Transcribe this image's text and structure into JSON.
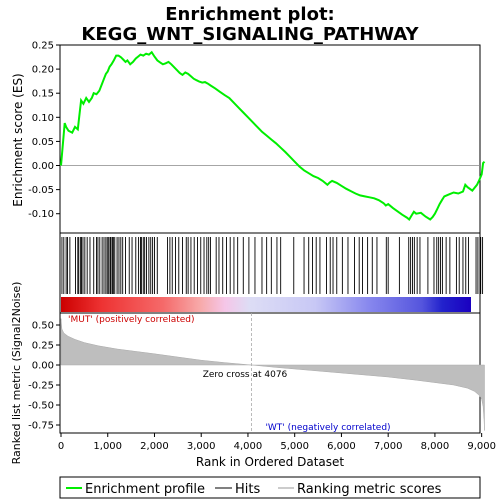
{
  "chart_data": {
    "type": "line",
    "title_line1": "Enrichment plot:",
    "title_line2": "KEGG_WNT_SIGNALING_PATHWAY",
    "panels": {
      "enrichment": {
        "ylabel": "Enrichment score (ES)",
        "ylim": [
          -0.14,
          0.25
        ],
        "yticks": [
          -0.1,
          -0.05,
          0.0,
          0.05,
          0.1,
          0.15,
          0.2,
          0.25
        ],
        "ytick_labels": [
          "-0.10",
          "-0.05",
          "0.00",
          "0.05",
          "0.10",
          "0.15",
          "0.20",
          "0.25"
        ],
        "series": [
          {
            "name": "Enrichment profile",
            "color": "#00ee00",
            "x": [
              0,
              40,
              80,
              110,
              160,
              240,
              300,
              360,
              400,
              430,
              480,
              540,
              600,
              660,
              700,
              760,
              820,
              880,
              920,
              960,
              1000,
              1040,
              1080,
              1130,
              1180,
              1230,
              1280,
              1330,
              1380,
              1420,
              1480,
              1540,
              1600,
              1650,
              1700,
              1760,
              1820,
              1880,
              1940,
              2000,
              2060,
              2120,
              2180,
              2240,
              2300,
              2360,
              2420,
              2480,
              2540,
              2600,
              2660,
              2720,
              2780,
              2840,
              2900,
              2960,
              3020,
              3080,
              3140,
              3200,
              3300,
              3400,
              3500,
              3600,
              3700,
              3800,
              3900,
              4000,
              4100,
              4200,
              4300,
              4400,
              4500,
              4600,
              4700,
              4800,
              4900,
              5000,
              5100,
              5200,
              5300,
              5400,
              5500,
              5600,
              5700,
              5750,
              5800,
              5900,
              6000,
              6100,
              6200,
              6300,
              6400,
              6500,
              6600,
              6700,
              6800,
              6900,
              6950,
              7000,
              7100,
              7200,
              7300,
              7400,
              7450,
              7500,
              7550,
              7600,
              7700,
              7800,
              7900,
              7950,
              8000,
              8050,
              8100,
              8150,
              8200,
              8300,
              8400,
              8500,
              8600,
              8650,
              8700,
              8800,
              8900,
              8950,
              9000,
              9030,
              9060
            ],
            "y": [
              0.0,
              0.045,
              0.088,
              0.08,
              0.072,
              0.068,
              0.08,
              0.075,
              0.11,
              0.135,
              0.128,
              0.14,
              0.132,
              0.14,
              0.15,
              0.148,
              0.155,
              0.17,
              0.18,
              0.19,
              0.195,
              0.205,
              0.21,
              0.218,
              0.228,
              0.228,
              0.225,
              0.22,
              0.215,
              0.218,
              0.21,
              0.215,
              0.222,
              0.226,
              0.23,
              0.228,
              0.232,
              0.23,
              0.235,
              0.226,
              0.218,
              0.214,
              0.21,
              0.212,
              0.215,
              0.21,
              0.204,
              0.198,
              0.192,
              0.188,
              0.193,
              0.19,
              0.185,
              0.18,
              0.177,
              0.174,
              0.172,
              0.173,
              0.17,
              0.166,
              0.16,
              0.153,
              0.146,
              0.14,
              0.13,
              0.12,
              0.11,
              0.1,
              0.09,
              0.08,
              0.07,
              0.062,
              0.054,
              0.046,
              0.037,
              0.028,
              0.018,
              0.008,
              -0.002,
              -0.01,
              -0.016,
              -0.022,
              -0.026,
              -0.032,
              -0.04,
              -0.035,
              -0.032,
              -0.036,
              -0.042,
              -0.048,
              -0.053,
              -0.058,
              -0.062,
              -0.064,
              -0.066,
              -0.068,
              -0.072,
              -0.078,
              -0.083,
              -0.08,
              -0.088,
              -0.095,
              -0.102,
              -0.108,
              -0.112,
              -0.104,
              -0.096,
              -0.1,
              -0.098,
              -0.106,
              -0.112,
              -0.107,
              -0.1,
              -0.09,
              -0.08,
              -0.072,
              -0.064,
              -0.06,
              -0.056,
              -0.058,
              -0.054,
              -0.04,
              -0.045,
              -0.052,
              -0.04,
              -0.03,
              -0.018,
              0.005,
              0.008
            ]
          }
        ]
      },
      "hits": {
        "label": "Hits",
        "positions": [
          20,
          60,
          110,
          140,
          190,
          310,
          360,
          380,
          420,
          440,
          470,
          510,
          560,
          620,
          700,
          760,
          790,
          830,
          880,
          920,
          960,
          990,
          1020,
          1050,
          1070,
          1100,
          1120,
          1150,
          1200,
          1240,
          1280,
          1320,
          1380,
          1460,
          1520,
          1600,
          1660,
          1700,
          1720,
          1760,
          1790,
          1830,
          1880,
          1920,
          1960,
          2000,
          2060,
          2280,
          2330,
          2380,
          2450,
          2520,
          2600,
          2680,
          2720,
          2780,
          2850,
          2920,
          2990,
          3060,
          3120,
          3160,
          3200,
          3320,
          3380,
          3460,
          3540,
          3620,
          3700,
          3780,
          3900,
          4020,
          4150,
          4300,
          4400,
          4500,
          4620,
          4700,
          4980,
          5200,
          5300,
          5380,
          5460,
          5540,
          5680,
          5760,
          5820,
          5900,
          6020,
          6140,
          6280,
          6380,
          6450,
          6560,
          6660,
          6760,
          6960,
          7000,
          7240,
          7440,
          7480,
          7520,
          7560,
          7620,
          7680,
          7850,
          7980,
          8040,
          8080,
          8120,
          8160,
          8240,
          8320,
          8460,
          8520,
          8600,
          8660,
          8720,
          8880,
          8920,
          8980,
          9020
        ]
      },
      "ranking": {
        "ylabel": "Ranked list metric (Signal2Noise)",
        "xlabel": "Rank in Ordered Dataset",
        "ylim": [
          -0.85,
          0.65
        ],
        "yticks": [
          -0.75,
          -0.5,
          -0.25,
          0.0,
          0.25,
          0.5
        ],
        "ytick_labels": [
          "-0.75",
          "-0.50",
          "-0.25",
          "0.00",
          "0.25",
          "0.50"
        ],
        "xlim": [
          0,
          9200
        ],
        "xticks": [
          0,
          1000,
          2000,
          3000,
          4000,
          5000,
          6000,
          7000,
          8000,
          9000
        ],
        "xtick_labels": [
          "0",
          "1,000",
          "2,000",
          "3,000",
          "4,000",
          "5,000",
          "6,000",
          "7,000",
          "8,000",
          "9,000"
        ],
        "zero_cross": 4076,
        "zero_cross_label": "Zero cross at 4076",
        "pos_label": "'MUT' (positively correlated)",
        "neg_label": "'WT' (negatively correlated)",
        "metric_x": [
          0,
          20,
          60,
          150,
          300,
          500,
          800,
          1200,
          1600,
          2000,
          2500,
          3000,
          3500,
          4076,
          4600,
          5200,
          5800,
          6400,
          7000,
          7600,
          8000,
          8400,
          8700,
          8850,
          8950,
          9000,
          9030,
          9050,
          9060
        ],
        "metric_y": [
          0.58,
          0.45,
          0.4,
          0.36,
          0.32,
          0.28,
          0.24,
          0.2,
          0.17,
          0.14,
          0.1,
          0.06,
          0.03,
          0.0,
          -0.03,
          -0.06,
          -0.09,
          -0.12,
          -0.15,
          -0.19,
          -0.22,
          -0.25,
          -0.29,
          -0.33,
          -0.38,
          -0.43,
          -0.52,
          -0.68,
          -0.82
        ]
      }
    },
    "legend": {
      "placement": "bottom",
      "items": [
        {
          "label": "Enrichment profile",
          "color": "#00ee00",
          "kind": "line"
        },
        {
          "label": "Hits",
          "color": "#000000",
          "kind": "line"
        },
        {
          "label": "Ranking metric scores",
          "color": "#bbbbbb",
          "kind": "line"
        }
      ]
    }
  }
}
